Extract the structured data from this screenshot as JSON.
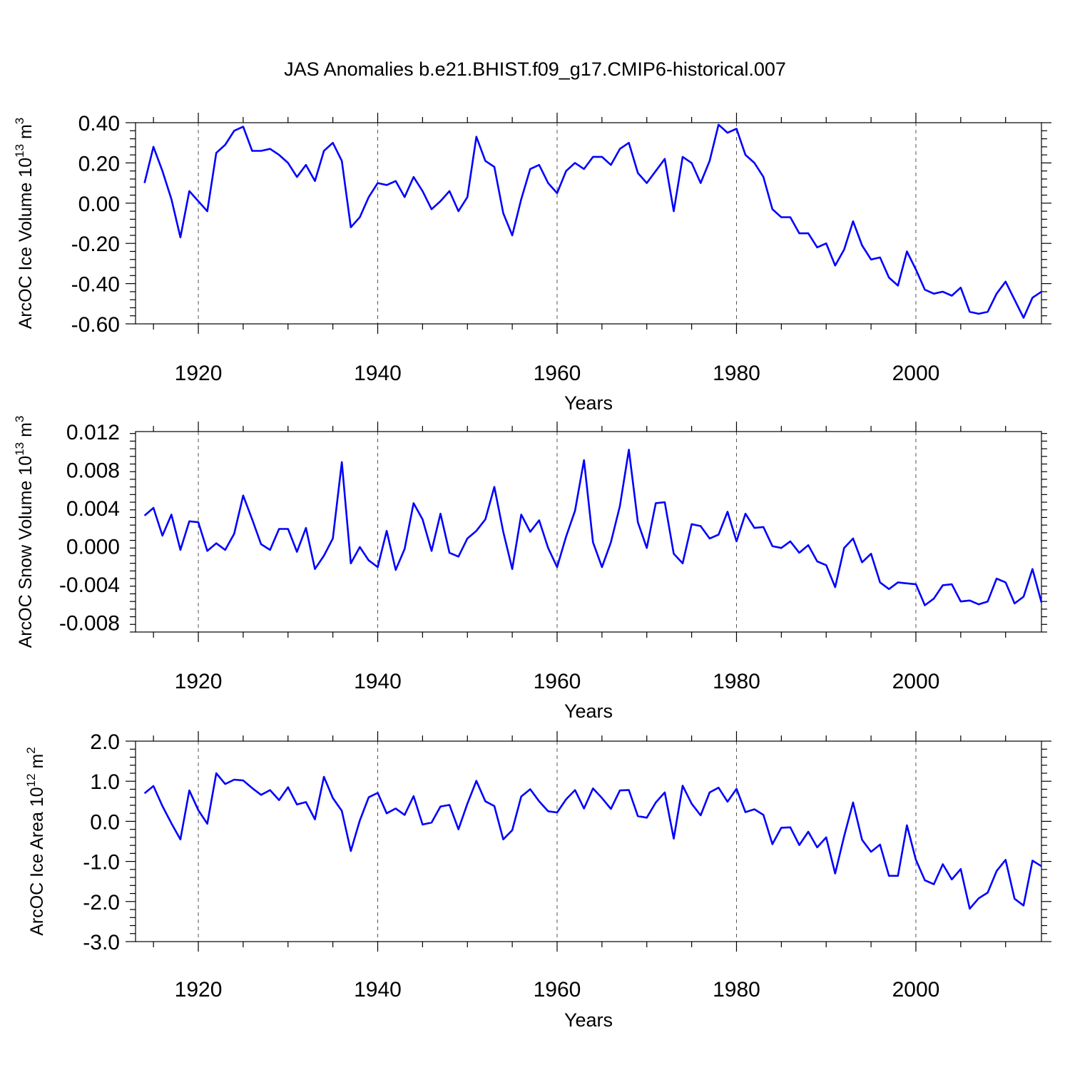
{
  "title": "JAS Anomalies b.e21.BHIST.f09_g17.CMIP6-historical.007",
  "colors": {
    "series": "#0000ff",
    "axes": "#000000"
  },
  "chart_data": [
    {
      "type": "line",
      "title": "JAS Anomalies b.e21.BHIST.f09_g17.CMIP6-historical.007",
      "xlabel": "Years",
      "ylabel_main": "ArcOC Ice Volume 10",
      "ylabel_sup": "13",
      "ylabel_unit": " m",
      "ylabel_unit_sup": "3",
      "xlim": [
        1913,
        2014
      ],
      "ylim": [
        -0.6,
        0.4
      ],
      "yticks": [
        -0.6,
        -0.4,
        -0.2,
        0.0,
        0.2,
        0.4
      ],
      "ytick_labels": [
        "-0.60",
        "-0.40",
        "-0.20",
        "0.00",
        "0.20",
        "0.40"
      ],
      "xticks": [
        1920,
        1940,
        1960,
        1980,
        2000
      ],
      "xtick_labels": [
        "1920",
        "1940",
        "1960",
        "1980",
        "2000"
      ],
      "grid": "vertical dashed at major x ticks",
      "x_start": 1914,
      "values": [
        0.1,
        0.28,
        0.16,
        0.02,
        -0.17,
        0.06,
        0.01,
        -0.04,
        0.25,
        0.29,
        0.36,
        0.38,
        0.26,
        0.26,
        0.27,
        0.24,
        0.2,
        0.13,
        0.19,
        0.11,
        0.26,
        0.3,
        0.21,
        -0.12,
        -0.07,
        0.03,
        0.1,
        0.09,
        0.11,
        0.03,
        0.13,
        0.06,
        -0.03,
        0.01,
        0.06,
        -0.04,
        0.03,
        0.33,
        0.21,
        0.18,
        -0.05,
        -0.16,
        0.02,
        0.17,
        0.19,
        0.1,
        0.05,
        0.16,
        0.2,
        0.17,
        0.23,
        0.23,
        0.19,
        0.27,
        0.3,
        0.15,
        0.1,
        0.16,
        0.22,
        -0.04,
        0.23,
        0.2,
        0.1,
        0.21,
        0.39,
        0.35,
        0.37,
        0.24,
        0.2,
        0.13,
        -0.03,
        -0.07,
        -0.07,
        -0.15,
        -0.15,
        -0.22,
        -0.2,
        -0.31,
        -0.23,
        -0.09,
        -0.21,
        -0.28,
        -0.27,
        -0.37,
        -0.41,
        -0.24,
        -0.33,
        -0.43,
        -0.45,
        -0.44,
        -0.46,
        -0.42,
        -0.54,
        -0.55,
        -0.54,
        -0.45,
        -0.39,
        -0.48,
        -0.57,
        -0.47,
        -0.44
      ]
    },
    {
      "type": "line",
      "title": "",
      "xlabel": "Years",
      "ylabel_main": "ArcOC Snow Volume 10",
      "ylabel_sup": "13",
      "ylabel_unit": " m",
      "ylabel_unit_sup": "3",
      "xlim": [
        1913,
        2014
      ],
      "ylim": [
        -0.009,
        0.012
      ],
      "yticks": [
        -0.008,
        -0.004,
        0.0,
        0.004,
        0.008,
        0.012
      ],
      "ytick_labels": [
        "-0.008",
        "-0.004",
        "0.000",
        "0.004",
        "0.008",
        "0.012"
      ],
      "xticks": [
        1920,
        1940,
        1960,
        1980,
        2000
      ],
      "xtick_labels": [
        "1920",
        "1940",
        "1960",
        "1980",
        "2000"
      ],
      "grid": "vertical dashed at major x ticks",
      "x_start": 1914,
      "values": [
        0.0032,
        0.004,
        0.0011,
        0.0033,
        -0.0004,
        0.0026,
        0.0025,
        -0.0005,
        0.0003,
        -0.0004,
        0.0013,
        0.0053,
        0.0028,
        0.0002,
        -0.0004,
        0.0018,
        0.0018,
        -0.0006,
        0.0019,
        -0.0024,
        -0.001,
        0.0008,
        0.0088,
        -0.0018,
        -0.0001,
        -0.0015,
        -0.0022,
        0.0016,
        -0.0025,
        -0.0003,
        0.0045,
        0.0028,
        -0.0005,
        0.0034,
        -0.0007,
        -0.0011,
        0.0008,
        0.0016,
        0.0028,
        0.0062,
        0.0015,
        -0.0024,
        0.0033,
        0.0015,
        0.0027,
        -0.0002,
        -0.0022,
        0.001,
        0.0037,
        0.009,
        0.0004,
        -0.0022,
        0.0004,
        0.0042,
        0.0101,
        0.0025,
        -0.0002,
        0.0045,
        0.0046,
        -0.0008,
        -0.0018,
        0.0023,
        0.0021,
        0.0008,
        0.0012,
        0.0036,
        0.0005,
        0.0034,
        0.0019,
        0.002,
        0.0,
        -0.0002,
        0.0005,
        -0.0007,
        0.0001,
        -0.0016,
        -0.002,
        -0.0043,
        -0.0002,
        0.0008,
        -0.0017,
        -0.0008,
        -0.0038,
        -0.0045,
        -0.0038,
        -0.0039,
        -0.004,
        -0.0062,
        -0.0055,
        -0.0041,
        -0.004,
        -0.0058,
        -0.0057,
        -0.0061,
        -0.0058,
        -0.0034,
        -0.0038,
        -0.006,
        -0.0053,
        -0.0024,
        -0.0059
      ]
    },
    {
      "type": "line",
      "title": "",
      "xlabel": "Years",
      "ylabel_main": "ArcOC Ice Area 10",
      "ylabel_sup": "12",
      "ylabel_unit": " m",
      "ylabel_unit_sup": "2",
      "xlim": [
        1913,
        2014
      ],
      "ylim": [
        -3.0,
        2.0
      ],
      "yticks": [
        -3.0,
        -2.0,
        -1.0,
        0.0,
        1.0,
        2.0
      ],
      "ytick_labels": [
        "-3.0",
        "-2.0",
        "-1.0",
        "0.0",
        "1.0",
        "2.0"
      ],
      "xticks": [
        1920,
        1940,
        1960,
        1980,
        2000
      ],
      "xtick_labels": [
        "1920",
        "1940",
        "1960",
        "1980",
        "2000"
      ],
      "grid": "vertical dashed at major x ticks",
      "x_start": 1914,
      "values": [
        0.7,
        0.88,
        0.38,
        -0.05,
        -0.45,
        0.77,
        0.28,
        -0.06,
        1.2,
        0.93,
        1.04,
        1.02,
        0.83,
        0.66,
        0.78,
        0.53,
        0.85,
        0.42,
        0.48,
        0.05,
        1.11,
        0.58,
        0.26,
        -0.74,
        0.02,
        0.6,
        0.71,
        0.2,
        0.32,
        0.16,
        0.63,
        -0.08,
        -0.03,
        0.37,
        0.41,
        -0.2,
        0.44,
        1.01,
        0.5,
        0.38,
        -0.45,
        -0.22,
        0.62,
        0.8,
        0.5,
        0.25,
        0.22,
        0.55,
        0.78,
        0.32,
        0.82,
        0.58,
        0.31,
        0.77,
        0.78,
        0.13,
        0.09,
        0.47,
        0.72,
        -0.43,
        0.89,
        0.44,
        0.15,
        0.72,
        0.84,
        0.49,
        0.81,
        0.23,
        0.3,
        0.16,
        -0.57,
        -0.16,
        -0.15,
        -0.59,
        -0.26,
        -0.65,
        -0.4,
        -1.3,
        -0.37,
        0.47,
        -0.46,
        -0.76,
        -0.58,
        -1.36,
        -1.36,
        -0.1,
        -0.96,
        -1.47,
        -1.57,
        -1.07,
        -1.45,
        -1.19,
        -2.18,
        -1.92,
        -1.78,
        -1.24,
        -0.96,
        -1.93,
        -2.1,
        -0.98,
        -1.12
      ]
    }
  ]
}
